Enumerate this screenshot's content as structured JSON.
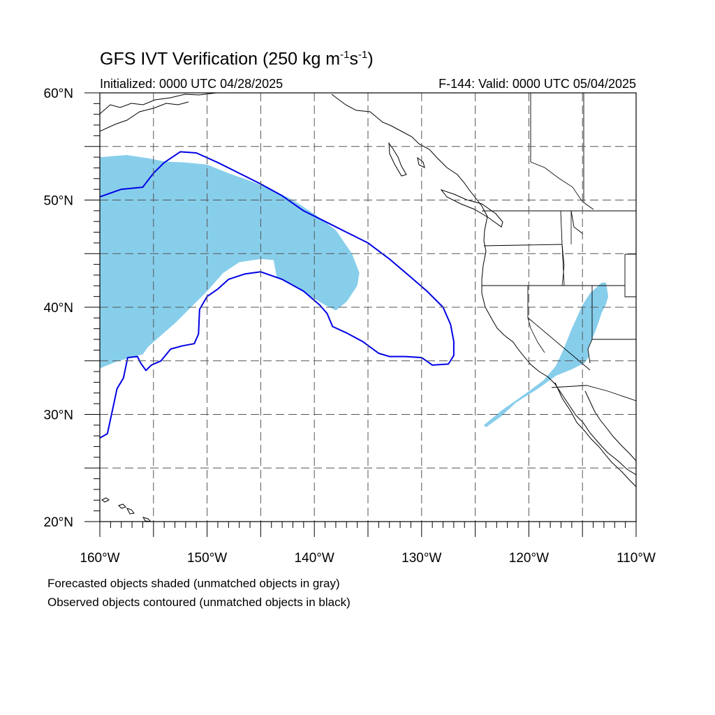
{
  "title": {
    "main": "GFS IVT Verification (250 kg m",
    "sup1": "-1",
    "mid": "s",
    "sup2": "-1",
    "end": ")"
  },
  "subtitle": {
    "left": "Initialized: 0000 UTC 04/28/2025",
    "right": "F-144: Valid: 0000 UTC 05/04/2025"
  },
  "footnotes": [
    "Forecasted objects shaded (unmatched objects in gray)",
    "Observed objects contoured (unmatched objects in black)"
  ],
  "map": {
    "lon_range": [
      -160,
      -110
    ],
    "lat_range": [
      20,
      60
    ],
    "lon_labels": [
      {
        "lon": -160,
        "label": "160°W"
      },
      {
        "lon": -150,
        "label": "150°W"
      },
      {
        "lon": -140,
        "label": "140°W"
      },
      {
        "lon": -130,
        "label": "130°W"
      },
      {
        "lon": -120,
        "label": "120°W"
      },
      {
        "lon": -110,
        "label": "110°W"
      }
    ],
    "lat_labels": [
      {
        "lat": 20,
        "label": "20°N"
      },
      {
        "lat": 30,
        "label": "30°N"
      },
      {
        "lat": 40,
        "label": "40°N"
      },
      {
        "lat": 50,
        "label": "50°N"
      },
      {
        "lat": 60,
        "label": "60°N"
      }
    ],
    "grid_dashed": true,
    "colors": {
      "forecast_fill": "#87ceeb",
      "observed_contour": "#0000e6",
      "coast": "#000000",
      "grid": "#555555"
    },
    "forecast_objects": [
      {
        "name": "North Pacific forecast IVT object",
        "lonlat": [
          [
            -160,
            54
          ],
          [
            -157.5,
            54.2
          ],
          [
            -155.5,
            53.9
          ],
          [
            -154,
            53.6
          ],
          [
            -152,
            53.5
          ],
          [
            -150,
            53.3
          ],
          [
            -148,
            52.5
          ],
          [
            -146,
            51.8
          ],
          [
            -144,
            51
          ],
          [
            -142,
            50
          ],
          [
            -140,
            48.7
          ],
          [
            -138,
            47.2
          ],
          [
            -136.5,
            45
          ],
          [
            -135.8,
            43.2
          ],
          [
            -136,
            42
          ],
          [
            -137,
            40.5
          ],
          [
            -138,
            39.7
          ],
          [
            -139,
            40.2
          ],
          [
            -140,
            40.8
          ],
          [
            -142,
            42
          ],
          [
            -143.5,
            42.8
          ],
          [
            -143.8,
            44.4
          ],
          [
            -145,
            44.5
          ],
          [
            -147,
            44.2
          ],
          [
            -148.5,
            43.2
          ],
          [
            -150,
            41.5
          ],
          [
            -151.5,
            40
          ],
          [
            -153,
            38.5
          ],
          [
            -154.5,
            37.2
          ],
          [
            -155.5,
            36.3
          ],
          [
            -156,
            35.6
          ],
          [
            -157.5,
            35.2
          ],
          [
            -158.5,
            34.9
          ],
          [
            -160,
            34.3
          ]
        ]
      },
      {
        "name": "Southwest US forecast IVT object",
        "lonlat": [
          [
            -124.2,
            29
          ],
          [
            -122.5,
            30.4
          ],
          [
            -120.5,
            31.8
          ],
          [
            -118.6,
            33.2
          ],
          [
            -117.5,
            34.5
          ],
          [
            -116.8,
            36
          ],
          [
            -116,
            38
          ],
          [
            -115,
            40.2
          ],
          [
            -114.3,
            41.3
          ],
          [
            -113.2,
            42.3
          ],
          [
            -112.8,
            42.3
          ],
          [
            -112.6,
            41
          ],
          [
            -112.8,
            40.3
          ],
          [
            -113.2,
            39.5
          ],
          [
            -113.6,
            38.3
          ],
          [
            -114.5,
            36
          ],
          [
            -114.4,
            35.4
          ],
          [
            -114.8,
            34.8
          ],
          [
            -116,
            34.2
          ],
          [
            -117.5,
            33.6
          ],
          [
            -119,
            32.5
          ],
          [
            -121.2,
            31.1
          ],
          [
            -122.6,
            29.8
          ],
          [
            -124,
            28.8
          ]
        ]
      }
    ],
    "observed_objects": [
      {
        "name": "Observed IVT object contour",
        "lonlat": [
          [
            -160,
            50.3
          ],
          [
            -158,
            51
          ],
          [
            -156,
            51.2
          ],
          [
            -155,
            52.5
          ],
          [
            -154,
            53.5
          ],
          [
            -152.5,
            54.5
          ],
          [
            -151,
            54.4
          ],
          [
            -149,
            53.5
          ],
          [
            -147,
            52.5
          ],
          [
            -145,
            51.5
          ],
          [
            -143,
            50.4
          ],
          [
            -141,
            49
          ],
          [
            -139,
            48
          ],
          [
            -137,
            47
          ],
          [
            -135,
            46
          ],
          [
            -133,
            44.5
          ],
          [
            -131,
            42.8
          ],
          [
            -129.5,
            41.5
          ],
          [
            -128,
            40
          ],
          [
            -127.3,
            38.4
          ],
          [
            -127,
            36.8
          ],
          [
            -127,
            35.5
          ],
          [
            -127.5,
            34.7
          ],
          [
            -129,
            34.6
          ],
          [
            -130,
            35.3
          ],
          [
            -131.5,
            35.4
          ],
          [
            -133,
            35.4
          ],
          [
            -134,
            35.7
          ],
          [
            -135.5,
            36.8
          ],
          [
            -137,
            37.6
          ],
          [
            -138.3,
            38.2
          ],
          [
            -138.8,
            39.4
          ],
          [
            -139.5,
            40.2
          ],
          [
            -141,
            41.5
          ],
          [
            -143,
            42.6
          ],
          [
            -145,
            43.3
          ],
          [
            -146.5,
            43.1
          ],
          [
            -148,
            42.6
          ],
          [
            -149,
            41.7
          ],
          [
            -150,
            41
          ],
          [
            -150.7,
            39.8
          ],
          [
            -150.8,
            37.5
          ],
          [
            -151.2,
            36.6
          ],
          [
            -152.3,
            36.4
          ],
          [
            -153.4,
            36.1
          ],
          [
            -154.3,
            35
          ],
          [
            -155.2,
            34.6
          ],
          [
            -155.7,
            34.1
          ],
          [
            -156.2,
            34.8
          ],
          [
            -156.5,
            35.4
          ],
          [
            -157.4,
            35.3
          ],
          [
            -157.8,
            33.4
          ],
          [
            -158.4,
            32.4
          ],
          [
            -158.8,
            30.5
          ],
          [
            -159.3,
            28.2
          ],
          [
            -160,
            27.8
          ]
        ]
      }
    ]
  }
}
